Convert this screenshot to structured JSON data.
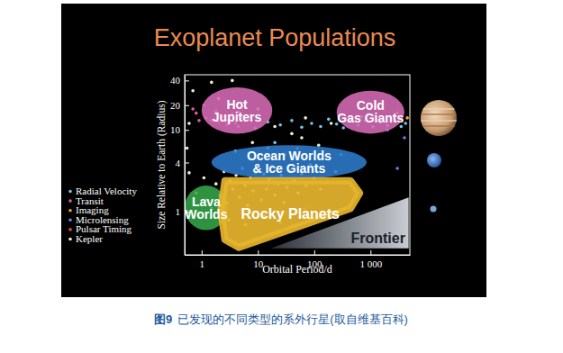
{
  "chart_data": {
    "type": "scatter",
    "title": "Exoplanet Populations",
    "x_label": "Orbital Period/d",
    "y_label": "Size Relative to Earth (Radius)",
    "log": true,
    "xlim": [
      0.5,
      5000
    ],
    "ylim": [
      0.3,
      47
    ],
    "xticks": [
      1,
      10,
      100,
      {
        "value": 1000,
        "label": "1 000"
      }
    ],
    "yticks": [
      1,
      4,
      10,
      20,
      40
    ],
    "legend": "left",
    "series": [
      {
        "name": "Radial Velocity",
        "color": "#6fc6e6",
        "x": [
          3,
          4.5,
          6,
          9,
          15,
          25,
          40,
          60,
          90,
          130,
          180,
          250,
          330,
          450,
          600,
          800,
          1100,
          1500,
          2000,
          2800,
          3500,
          4200,
          700,
          1200,
          20,
          50,
          9,
          300
        ],
        "values": [
          12,
          11,
          13,
          10.5,
          12.5,
          11.5,
          13,
          10.8,
          12,
          11,
          13.5,
          11.8,
          10.6,
          12.7,
          11.4,
          13,
          10.9,
          12.2,
          11.3,
          12.8,
          11,
          12,
          14.5,
          15,
          7,
          6,
          4.5,
          5
        ]
      },
      {
        "name": "Transit",
        "color": "#e25aa6",
        "x": [
          1.2,
          1.5,
          2,
          2.5,
          3,
          3.5,
          4,
          4.5,
          5,
          1.8,
          2.8,
          0.9,
          0.7,
          1.1,
          3,
          0.8
        ],
        "values": [
          14,
          13,
          12.5,
          14.5,
          13.2,
          15.5,
          12,
          16.5,
          13.8,
          17,
          11.5,
          13,
          18,
          20,
          19,
          16
        ]
      },
      {
        "name": "Imaging",
        "color": "#f0a23a",
        "x": [
          3000,
          4500
        ],
        "values": [
          16,
          14
        ]
      },
      {
        "name": "Microlensing",
        "color": "#6a80ea",
        "x": [
          3000,
          2000,
          4000
        ],
        "values": [
          3.4,
          10,
          8
        ]
      },
      {
        "name": "Pulsar Timing",
        "color": "#e84a3c",
        "x": [
          25,
          67
        ],
        "values": [
          1,
          1.1
        ]
      },
      {
        "name": "Kepler",
        "color": "#f2eecb",
        "x": [
          1.2,
          1.5,
          1.8,
          2.1,
          2.5,
          2.8,
          3.2,
          3.6,
          4.1,
          4.7,
          5.3,
          5.9,
          6.6,
          7.4,
          8.2,
          9.1,
          10.3,
          11.5,
          12.8,
          14.2,
          16,
          18,
          20,
          23,
          26,
          29,
          33,
          38,
          44,
          52,
          60,
          72,
          85,
          100,
          130,
          170,
          240,
          0.8,
          0.9,
          1.1,
          3,
          6,
          13,
          25,
          4,
          8,
          15,
          30,
          60,
          120,
          3,
          5,
          20,
          40,
          2,
          1.5,
          3.5,
          0.7,
          10,
          70,
          200,
          0.6,
          0.55,
          0.6
        ],
        "values": [
          1.4,
          1.1,
          2.2,
          1.6,
          3.1,
          1.3,
          2.4,
          1.9,
          2.8,
          1.5,
          3.4,
          2.1,
          1.2,
          2.6,
          1.8,
          3.0,
          2.3,
          1.4,
          2.9,
          1.9,
          2.5,
          3.6,
          1.6,
          2.2,
          2.8,
          1.3,
          2.0,
          3.2,
          2.4,
          1.7,
          2.9,
          2.1,
          3.8,
          2.6,
          1.9,
          2.3,
          3.1,
          1.7,
          0.9,
          2.6,
          0.8,
          0.7,
          0.9,
          0.75,
          5.5,
          7,
          6,
          5,
          8,
          6.5,
          13,
          15,
          11,
          9,
          24,
          38,
          40,
          30,
          18,
          14,
          12,
          12,
          6,
          3
        ]
      }
    ],
    "regions": [
      {
        "label": [
          "Hot",
          "Jupiters"
        ],
        "color": "#d66bb5",
        "period": [
          1,
          18
        ],
        "radius": [
          9,
          33
        ]
      },
      {
        "label": [
          "Cold",
          "Gas Giants"
        ],
        "color": "#d66bb5",
        "period": [
          250,
          4000
        ],
        "radius": [
          9,
          30
        ]
      },
      {
        "label": [
          "Ocean Worlds",
          "& Ice Giants"
        ],
        "color": "#2e7ccc",
        "period": [
          1.5,
          850
        ],
        "radius": [
          2.5,
          6.5
        ]
      },
      {
        "label": [
          "Lava",
          "Worlds"
        ],
        "color": "#35a64a",
        "period": [
          0.5,
          2.9
        ],
        "radius": [
          0.6,
          2.1
        ]
      },
      {
        "label": [
          "Rocky Planets"
        ],
        "color": "#e6b52e",
        "period": [
          2.6,
          440,
          640,
          440,
          4.6,
          2.6,
          2.2
        ],
        "radius": [
          2.4,
          2.4,
          1.7,
          1.1,
          0.37,
          0.46,
          1.05
        ]
      },
      {
        "label": [
          "Frontier"
        ],
        "color": "#c9cdd3",
        "period": [
          17,
          4750,
          4750
        ],
        "radius": [
          0.36,
          1.5,
          0.36
        ]
      }
    ],
    "figure_number": "图9",
    "caption": "已发现的不同类型的系外行星(取自维基百科)"
  }
}
